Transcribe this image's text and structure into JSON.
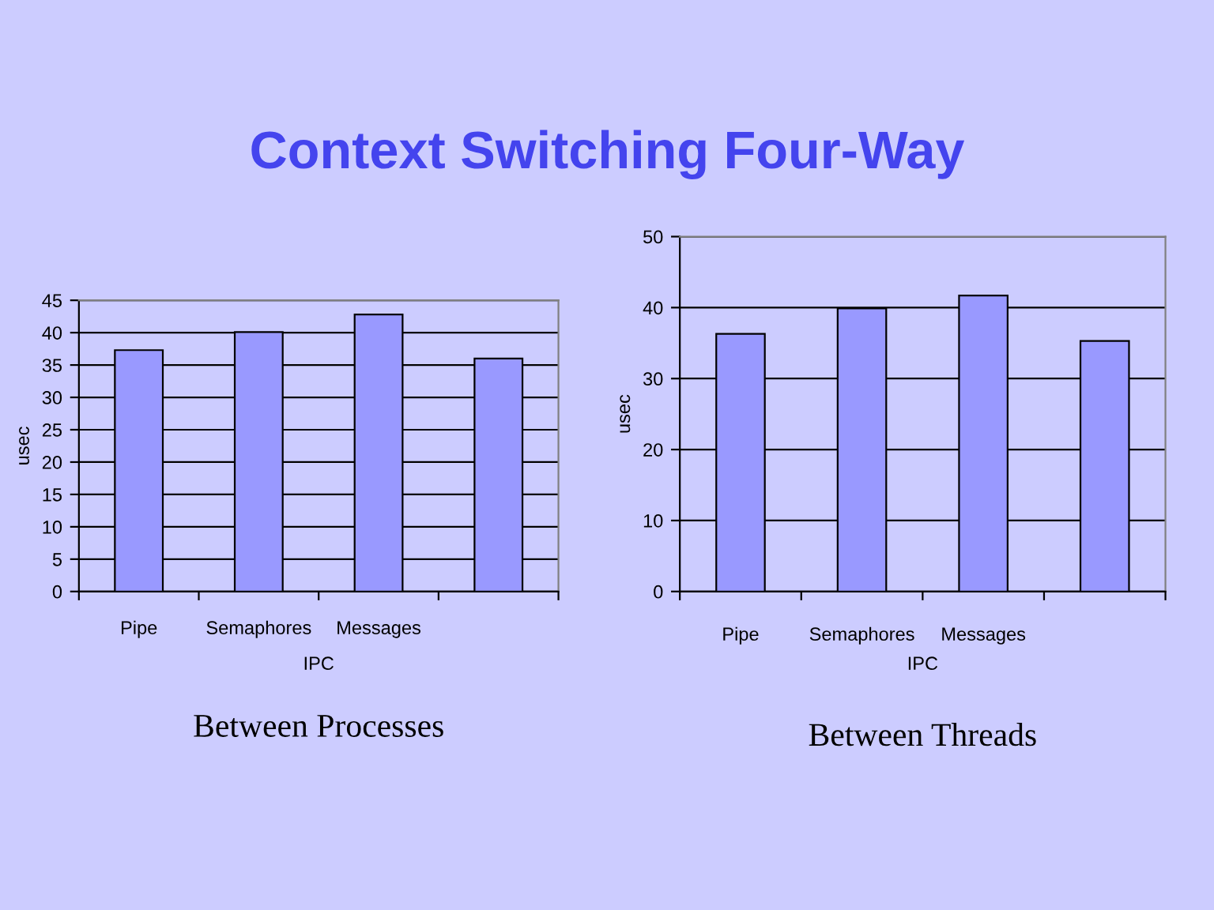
{
  "chart_data": [
    {
      "type": "bar",
      "title": "Context Switching Four-Way",
      "categories": [
        "Pipe",
        "Semaphores",
        "Messages",
        null
      ],
      "values": [
        37.3,
        40.1,
        42.8,
        36.0
      ],
      "color": "#9999ff",
      "xlabel": "IPC",
      "ylabel": "usec",
      "ylim": [
        0,
        45
      ],
      "yticks": [
        0,
        5,
        10,
        15,
        20,
        25,
        30,
        35,
        40,
        45
      ],
      "grid": "y",
      "annotations": [
        "Between Processes"
      ]
    },
    {
      "type": "bar",
      "categories": [
        "Pipe",
        "Semaphores",
        "Messages",
        null
      ],
      "values": [
        36.3,
        39.9,
        41.7,
        35.3
      ],
      "color": "#9999ff",
      "xlabel": "IPC",
      "ylabel": "usec",
      "ylim": [
        0,
        50
      ],
      "yticks": [
        0,
        10,
        20,
        30,
        40,
        50
      ],
      "grid": "y",
      "annotations": [
        "Between Threads"
      ]
    }
  ]
}
